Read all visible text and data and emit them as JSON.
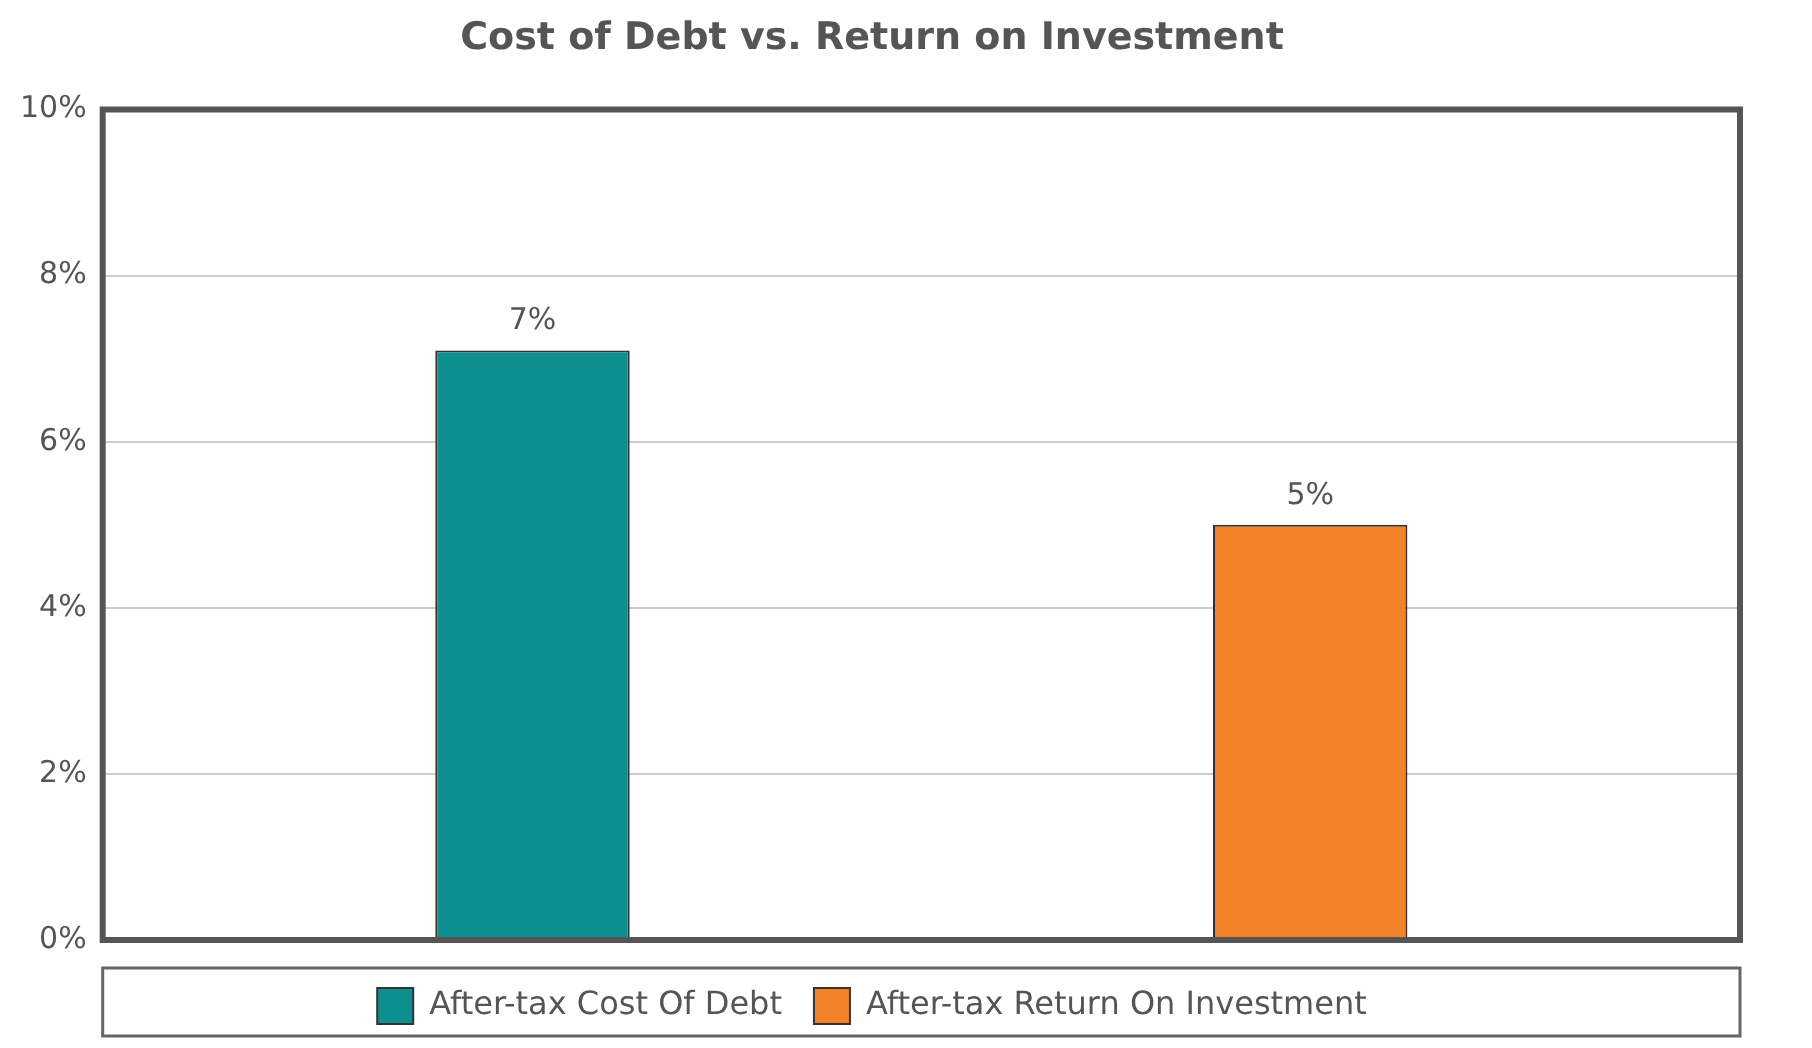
{
  "chart_data": {
    "type": "bar",
    "title": "Cost of Debt vs. Return on Investment",
    "categories": [
      null
    ],
    "series": [
      {
        "name": "After-tax Cost Of Debt",
        "color": "#0e8f8f",
        "values": [
          7.1
        ],
        "value_labels": [
          "7%"
        ]
      },
      {
        "name": "After-tax Return On Investment",
        "color": "#f28227",
        "values": [
          5
        ],
        "value_labels": [
          "5%"
        ]
      }
    ],
    "ylim": [
      0,
      10
    ],
    "yticks": [
      {
        "value": 0,
        "label": "0%"
      },
      {
        "value": 2,
        "label": "2%"
      },
      {
        "value": 4,
        "label": "4%"
      },
      {
        "value": 6,
        "label": "6%"
      },
      {
        "value": 8,
        "label": "8%"
      },
      {
        "value": 10,
        "label": "10%"
      }
    ],
    "grid": "y",
    "legend": "bottom"
  }
}
